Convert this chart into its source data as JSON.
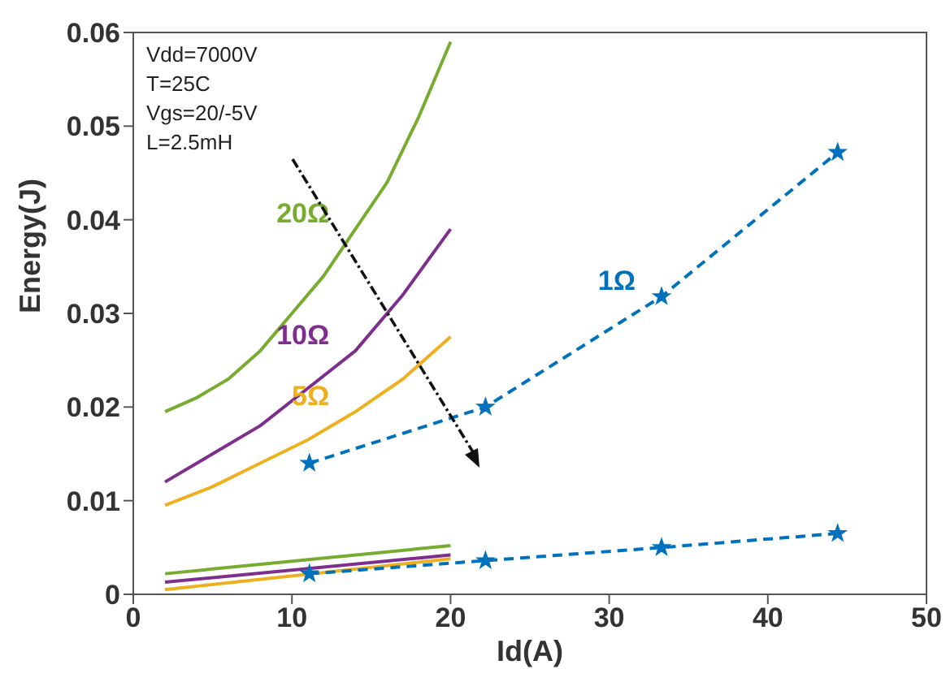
{
  "chart_data": {
    "type": "line",
    "xlabel": "Id(A)",
    "ylabel": "Energy(J)",
    "xlim": [
      0,
      50
    ],
    "xticks": [
      0,
      10,
      20,
      30,
      40,
      50
    ],
    "ylim": [
      0,
      0.06
    ],
    "yticks": [
      0,
      0.01,
      0.02,
      0.03,
      0.04,
      0.05,
      0.06
    ],
    "grid": false,
    "legend": false,
    "annotations": [
      "Vdd=7000V",
      "T=25C",
      "Vgs=20/-5V",
      "L=2.5mH"
    ],
    "series": [
      {
        "name": "20Ω",
        "color": "#77ac30",
        "line_style": "solid",
        "marker": "none",
        "x": [
          2,
          4,
          6,
          8,
          10,
          12,
          14,
          16,
          18,
          20
        ],
        "values": [
          0.0195,
          0.021,
          0.023,
          0.026,
          0.03,
          0.034,
          0.039,
          0.044,
          0.051,
          0.059
        ]
      },
      {
        "name": "10Ω",
        "color": "#7e2f8e",
        "line_style": "solid",
        "marker": "none",
        "x": [
          2,
          5,
          8,
          11,
          14,
          17,
          20
        ],
        "values": [
          0.012,
          0.015,
          0.018,
          0.022,
          0.026,
          0.032,
          0.039
        ]
      },
      {
        "name": "5Ω",
        "color": "#edb120",
        "line_style": "solid",
        "marker": "none",
        "x": [
          2,
          5,
          8,
          11,
          14,
          17,
          20
        ],
        "values": [
          0.0095,
          0.0115,
          0.014,
          0.0165,
          0.0195,
          0.023,
          0.0275
        ]
      },
      {
        "name": "1Ω",
        "color": "#0072bd",
        "line_style": "dashed",
        "marker": "star",
        "x": [
          11.1,
          22.2,
          33.3,
          44.4
        ],
        "values": [
          0.014,
          0.02,
          0.0318,
          0.0472
        ]
      },
      {
        "color": "#77ac30",
        "line_style": "solid",
        "marker": "none",
        "x": [
          2,
          20
        ],
        "values": [
          0.0022,
          0.0052
        ]
      },
      {
        "color": "#7e2f8e",
        "line_style": "solid",
        "marker": "none",
        "x": [
          2,
          20
        ],
        "values": [
          0.0013,
          0.0042
        ]
      },
      {
        "color": "#edb120",
        "line_style": "solid",
        "marker": "none",
        "x": [
          2,
          20
        ],
        "values": [
          0.0005,
          0.0038
        ]
      },
      {
        "color": "#0072bd",
        "line_style": "dashed",
        "marker": "star",
        "x": [
          11.1,
          22.2,
          33.3,
          44.4
        ],
        "values": [
          0.0022,
          0.0036,
          0.005,
          0.0065
        ]
      }
    ]
  }
}
